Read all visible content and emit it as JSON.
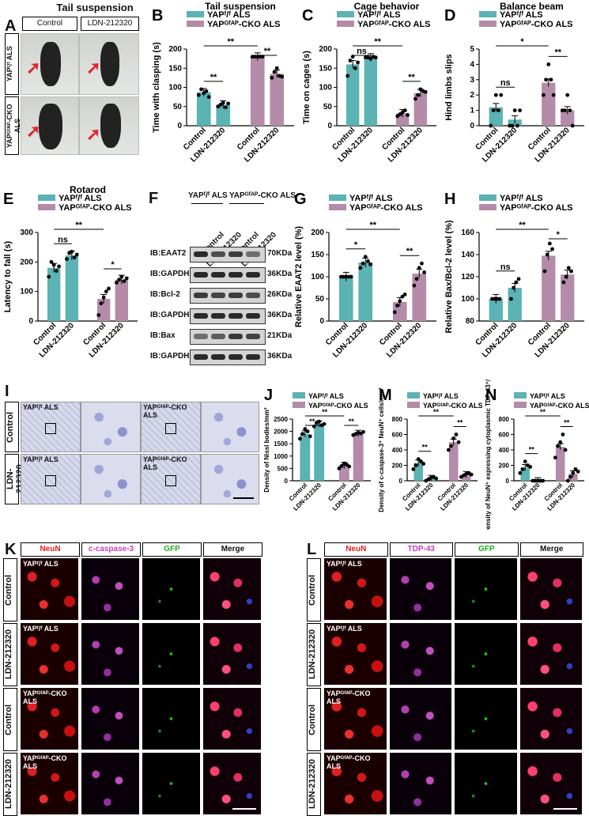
{
  "panelA": {
    "letter": "A",
    "title": "Tail suspension",
    "col_labels": [
      "Control",
      "LDN-212320"
    ],
    "row_labels": [
      "YAPᶠ/ᶠ ALS",
      "YAPᴳᶠᴬᴾ-CKO ALS"
    ]
  },
  "legend_wt": "YAPᶠ/ᶠ ALS",
  "legend_cko": "YAPᴳᶠᴬᴾ-CKO ALS",
  "colors": {
    "wt": "#5bb3b3",
    "cko": "#b48ba9"
  },
  "charts": [
    {
      "id": "B",
      "letter": "B",
      "title": "Tail suspension",
      "ylabel": "Time with clasping (s)",
      "ylim": [
        0,
        200
      ],
      "yticks": [
        0,
        50,
        100,
        150,
        200
      ],
      "categories": [
        "Control",
        "LDN-212320",
        "Control",
        "LDN-212320"
      ],
      "values": [
        87,
        55,
        180,
        135
      ],
      "points": [
        [
          80,
          95,
          85,
          90,
          75
        ],
        [
          50,
          55,
          60,
          48,
          58
        ],
        [
          180,
          180,
          180,
          180,
          180
        ],
        [
          125,
          140,
          150,
          130,
          128
        ]
      ],
      "sig": [
        {
          "a": 0,
          "b": 1,
          "t": "**"
        },
        {
          "a": 2,
          "b": 3,
          "t": "**"
        },
        {
          "a": 0,
          "b": 2,
          "t": "**"
        }
      ]
    },
    {
      "id": "C",
      "letter": "C",
      "title": "Cage behavior",
      "ylabel": "Time on cages (s)",
      "ylim": [
        0,
        200
      ],
      "yticks": [
        0,
        50,
        100,
        150,
        200
      ],
      "categories": [
        "Control",
        "LDN-212320",
        "Control",
        "LDN-212320"
      ],
      "values": [
        160,
        178,
        32,
        85
      ],
      "points": [
        [
          130,
          170,
          180,
          150,
          165
        ],
        [
          178,
          178,
          175,
          180,
          178
        ],
        [
          25,
          30,
          35,
          40,
          28
        ],
        [
          70,
          80,
          95,
          90,
          88
        ]
      ],
      "sig": [
        {
          "a": 0,
          "b": 1,
          "t": "ns"
        },
        {
          "a": 2,
          "b": 3,
          "t": "**"
        },
        {
          "a": 0,
          "b": 2,
          "t": "**"
        }
      ]
    },
    {
      "id": "D",
      "letter": "D",
      "title": "Balance beam",
      "ylabel": "Hind limbs slips",
      "ylim": [
        0,
        5
      ],
      "yticks": [
        0,
        1,
        2,
        3,
        4,
        5
      ],
      "categories": [
        "Control",
        "LDN-212320",
        "Control",
        "LDN-212320"
      ],
      "values": [
        1.2,
        0.4,
        2.8,
        1.0
      ],
      "points": [
        [
          0,
          1,
          2,
          1,
          2
        ],
        [
          0,
          0,
          1,
          0,
          1
        ],
        [
          2,
          3,
          4,
          3,
          2
        ],
        [
          1,
          1,
          2,
          1,
          0
        ]
      ],
      "sig": [
        {
          "a": 0,
          "b": 1,
          "t": "ns"
        },
        {
          "a": 2,
          "b": 3,
          "t": "**"
        },
        {
          "a": 0,
          "b": 2,
          "t": "*"
        }
      ]
    },
    {
      "id": "E",
      "letter": "E",
      "title": "Rotarod",
      "ylabel": "Latency to fall (s)",
      "ylim": [
        0,
        300
      ],
      "yticks": [
        0,
        100,
        200,
        300
      ],
      "categories": [
        "Control",
        "LDN-212320",
        "Control",
        "LDN-212320"
      ],
      "values": [
        180,
        222,
        75,
        140
      ],
      "points": [
        [
          150,
          200,
          190,
          170,
          185
        ],
        [
          210,
          230,
          235,
          215,
          225
        ],
        [
          20,
          60,
          80,
          100,
          110
        ],
        [
          130,
          140,
          150,
          135,
          145
        ]
      ],
      "sig": [
        {
          "a": 0,
          "b": 1,
          "t": "ns"
        },
        {
          "a": 2,
          "b": 3,
          "t": "*"
        },
        {
          "a": 0,
          "b": 2,
          "t": "**"
        }
      ]
    },
    {
      "id": "G",
      "letter": "G",
      "title": "",
      "ylabel": "Relative EAAT2 level (%)",
      "ylim": [
        0,
        200
      ],
      "yticks": [
        0,
        50,
        100,
        150,
        200
      ],
      "categories": [
        "Control",
        "LDN-212320",
        "Control",
        "LDN-212320"
      ],
      "values": [
        100,
        132,
        43,
        107
      ],
      "points": [
        [
          100,
          100,
          100,
          100,
          100
        ],
        [
          120,
          130,
          145,
          135,
          128
        ],
        [
          20,
          35,
          45,
          55,
          60
        ],
        [
          80,
          95,
          120,
          130,
          110
        ]
      ],
      "sig": [
        {
          "a": 0,
          "b": 1,
          "t": "*"
        },
        {
          "a": 2,
          "b": 3,
          "t": "**"
        },
        {
          "a": 0,
          "b": 2,
          "t": "**"
        }
      ]
    },
    {
      "id": "H",
      "letter": "H",
      "title": "",
      "ylabel": "Relative Bax/Bcl-2 level (%)",
      "ylim": [
        80,
        160
      ],
      "yticks": [
        80,
        100,
        120,
        140,
        160
      ],
      "categories": [
        "Control",
        "LDN-212320",
        "Control",
        "LDN-212320"
      ],
      "values": [
        100,
        110,
        139,
        122
      ],
      "points": [
        [
          100,
          100,
          100,
          100
        ],
        [
          100,
          110,
          115,
          118
        ],
        [
          125,
          140,
          150,
          145
        ],
        [
          115,
          120,
          128,
          125
        ]
      ],
      "sig": [
        {
          "a": 0,
          "b": 1,
          "t": "ns"
        },
        {
          "a": 2,
          "b": 3,
          "t": "*"
        },
        {
          "a": 0,
          "b": 2,
          "t": "**"
        }
      ]
    },
    {
      "id": "J",
      "letter": "J",
      "title": "",
      "ylabel": "Density of Nissl bodies/mm²",
      "ylim": [
        0,
        2500
      ],
      "yticks": [
        0,
        500,
        1000,
        1500,
        2000,
        2500
      ],
      "categories": [
        "Control",
        "LDN-212320",
        "Control",
        "LDN-212320"
      ],
      "values": [
        1900,
        2300,
        620,
        1920
      ],
      "points": [
        [
          1700,
          1900,
          2100,
          2000,
          1800
        ],
        [
          2200,
          2350,
          2400,
          2250,
          2300
        ],
        [
          500,
          600,
          700,
          650,
          580
        ],
        [
          1850,
          1900,
          1950,
          1920,
          1980
        ]
      ],
      "sig": [
        {
          "a": 0,
          "b": 1,
          "t": "**"
        },
        {
          "a": 2,
          "b": 3,
          "t": "**"
        },
        {
          "a": 0,
          "b": 2,
          "t": "**"
        }
      ]
    },
    {
      "id": "M",
      "letter": "M",
      "title": "",
      "ylabel": "Density of c-caspase-3⁺ NeuN⁺ cells/mm²",
      "ylim": [
        0,
        800
      ],
      "yticks": [
        0,
        200,
        400,
        600,
        800
      ],
      "categories": [
        "Control",
        "LDN-212320",
        "Control",
        "LDN-212320"
      ],
      "values": [
        230,
        30,
        500,
        80
      ],
      "points": [
        [
          150,
          200,
          280,
          250,
          220
        ],
        [
          0,
          20,
          40,
          50,
          30
        ],
        [
          400,
          450,
          550,
          600,
          500
        ],
        [
          50,
          70,
          90,
          100,
          80
        ]
      ],
      "sig": [
        {
          "a": 0,
          "b": 1,
          "t": "**"
        },
        {
          "a": 2,
          "b": 3,
          "t": "**"
        },
        {
          "a": 0,
          "b": 2,
          "t": "**"
        }
      ]
    },
    {
      "id": "N",
      "letter": "N",
      "title": "",
      "ylabel": "Density of NeuN⁺ expressing cytoplasmic TDP-43⁺/mm²",
      "ylim": [
        0,
        800
      ],
      "yticks": [
        0,
        200,
        400,
        600,
        800
      ],
      "categories": [
        "Control",
        "LDN-212320",
        "Control",
        "LDN-212320"
      ],
      "values": [
        170,
        0,
        440,
        90
      ],
      "points": [
        [
          100,
          150,
          250,
          200,
          180
        ],
        [
          0,
          0,
          0,
          0,
          0
        ],
        [
          300,
          450,
          500,
          600,
          400
        ],
        [
          0,
          50,
          100,
          150,
          120
        ]
      ],
      "sig": [
        {
          "a": 0,
          "b": 1,
          "t": "**"
        },
        {
          "a": 2,
          "b": 3,
          "t": "**"
        },
        {
          "a": 0,
          "b": 2,
          "t": "**"
        }
      ]
    }
  ],
  "panelF": {
    "letter": "F",
    "groups": [
      "YAPᶠ/ᶠ ALS",
      "YAPᴳᶠᴬᴾ-CKO ALS"
    ],
    "lanes": [
      "Control",
      "LDN-212320",
      "Control",
      "LDN-212320"
    ],
    "rows": [
      {
        "name": "IB:EAAT2",
        "kda": "70KDa"
      },
      {
        "name": "IB:GAPDH",
        "kda": "36KDa"
      },
      {
        "name": "IB:Bcl-2",
        "kda": "26KDa"
      },
      {
        "name": "IB:GAPDH",
        "kda": "36KDa"
      },
      {
        "name": "IB:Bax",
        "kda": "21KDa"
      },
      {
        "name": "IB:GAPDH",
        "kda": "36KDa"
      }
    ]
  },
  "panelI": {
    "letter": "I",
    "row_labels": [
      "Control",
      "LDN-212320"
    ],
    "wt_label": "YAPᶠ/ᶠ ALS",
    "cko_label": "YAPᴳᶠᴬᴾ-CKO ALS"
  },
  "panelK": {
    "letter": "K",
    "channels": [
      "NeuN",
      "c-caspase-3",
      "GFP",
      "Merge"
    ],
    "row_labels": [
      "Control",
      "LDN-212320",
      "Control",
      "LDN-212320"
    ],
    "row_tags": [
      "YAPᶠ/ᶠ ALS",
      "YAPᶠ/ᶠ ALS",
      "YAPᴳᶠᴬᴾ-CKO ALS",
      "YAPᴳᶠᴬᴾ-CKO ALS"
    ]
  },
  "panelL": {
    "letter": "L",
    "channels": [
      "NeuN",
      "TDP-43",
      "GFP",
      "Merge"
    ],
    "row_labels": [
      "Control",
      "LDN-212320",
      "Control",
      "LDN-212320"
    ],
    "row_tags": [
      "YAPᶠ/ᶠ ALS",
      "YAPᶠ/ᶠ ALS",
      "YAPᴳᶠᴬᴾ-CKO ALS",
      "YAPᴳᶠᴬᴾ-CKO ALS"
    ]
  }
}
